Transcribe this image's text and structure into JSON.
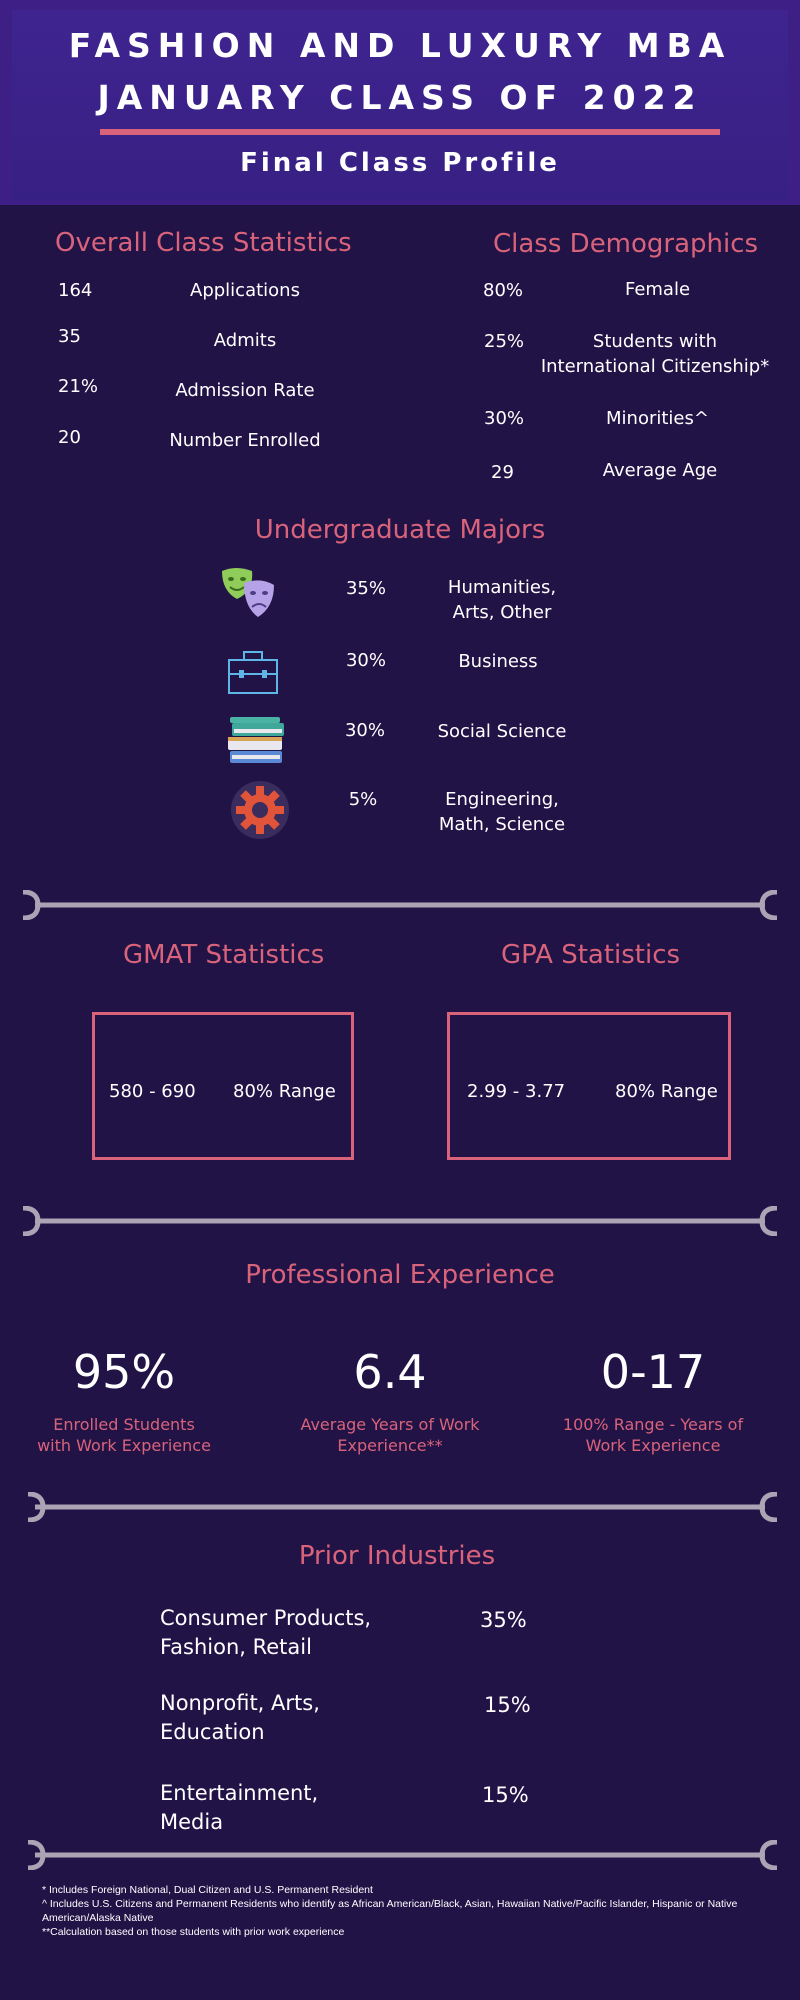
{
  "header": {
    "title_line1": "FASHION AND LUXURY MBA",
    "title_line2": "JANUARY CLASS OF 2022",
    "subtitle": "Final Class Profile"
  },
  "overall": {
    "heading": "Overall Class Statistics",
    "rows": [
      {
        "value": "164",
        "label": "Applications"
      },
      {
        "value": "35",
        "label": "Admits"
      },
      {
        "value": "21%",
        "label": "Admission Rate"
      },
      {
        "value": "20",
        "label": "Number Enrolled"
      }
    ]
  },
  "demographics": {
    "heading": "Class Demographics",
    "rows": [
      {
        "value": "80%",
        "label": "Female"
      },
      {
        "value": "25%",
        "label_line1": "Students with",
        "label_line2": "International Citizenship*"
      },
      {
        "value": "30%",
        "label": "Minorities^"
      },
      {
        "value": "29",
        "label": "Average Age"
      }
    ]
  },
  "majors": {
    "heading": "Undergraduate Majors",
    "items": [
      {
        "icon": "theater-masks-icon",
        "value": "35%",
        "label_line1": "Humanities,",
        "label_line2": "Arts, Other"
      },
      {
        "icon": "briefcase-icon",
        "value": "30%",
        "label_line1": "Business",
        "label_line2": ""
      },
      {
        "icon": "books-icon",
        "value": "30%",
        "label_line1": "Social Science",
        "label_line2": ""
      },
      {
        "icon": "gear-icon",
        "value": "5%",
        "label_line1": "Engineering,",
        "label_line2": "Math, Science"
      }
    ]
  },
  "gmat": {
    "heading": "GMAT Statistics",
    "value": "580 - 690",
    "label": "80% Range"
  },
  "gpa": {
    "heading": "GPA Statistics",
    "value": "2.99 - 3.77",
    "label": "80% Range"
  },
  "experience": {
    "heading": "Professional Experience",
    "items": [
      {
        "value": "95%",
        "label_line1": "Enrolled Students",
        "label_line2": "with Work Experience"
      },
      {
        "value": "6.4",
        "label_line1": "Average Years of Work",
        "label_line2": "Experience**"
      },
      {
        "value": "0-17",
        "label_line1": "100% Range - Years of",
        "label_line2": "Work Experience"
      }
    ]
  },
  "industries": {
    "heading": "Prior Industries",
    "items": [
      {
        "label_line1": "Consumer Products,",
        "label_line2": "Fashion, Retail",
        "value": "35%"
      },
      {
        "label_line1": "Nonprofit, Arts,",
        "label_line2": "Education",
        "value": "15%"
      },
      {
        "label_line1": "Entertainment,",
        "label_line2": "Media",
        "value": "15%"
      }
    ]
  },
  "footnotes": {
    "note1": "* Includes Foreign National, Dual Citizen and U.S. Permanent Resident",
    "note2": "^ Includes U.S. Citizens and Permanent Residents who identify as African American/Black, Asian, Hawaiian Native/Pacific Islander, Hispanic or Native American/Alaska Native",
    "note3": "**Calculation based on those students with prior work experience"
  },
  "colors": {
    "background": "#221347",
    "header": "#3e1f86",
    "accent": "#d8637a",
    "divider": "#aaa4b4"
  }
}
